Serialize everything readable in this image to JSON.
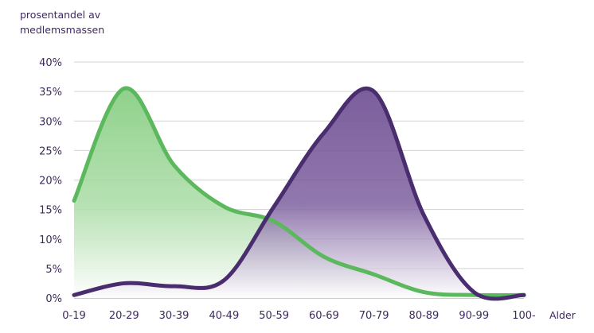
{
  "chart_data": {
    "type": "area",
    "ylabel_lines": [
      "prosentandel av",
      "medlemsmassen"
    ],
    "xlabel": "Alder",
    "categories": [
      "0-19",
      "20-29",
      "30-39",
      "40-49",
      "50-59",
      "60-69",
      "70-79",
      "80-89",
      "90-99",
      "100-"
    ],
    "y_ticks": [
      "0%",
      "5%",
      "10%",
      "15%",
      "20%",
      "25%",
      "30%",
      "35%",
      "40%"
    ],
    "ylim": [
      0,
      40
    ],
    "grid": true,
    "series": [
      {
        "values": [
          16.5,
          35.5,
          22.5,
          15.5,
          13.0,
          7.0,
          4.0,
          1.0,
          0.5,
          0.5
        ],
        "color": "#5cb85c",
        "fill_color": "#8fd18a"
      },
      {
        "values": [
          0.5,
          2.5,
          2.0,
          3.0,
          15.5,
          28.0,
          35.0,
          14.0,
          1.0,
          0.5
        ],
        "color": "#4a2d6e",
        "fill_color": "#6f4f93"
      }
    ]
  }
}
